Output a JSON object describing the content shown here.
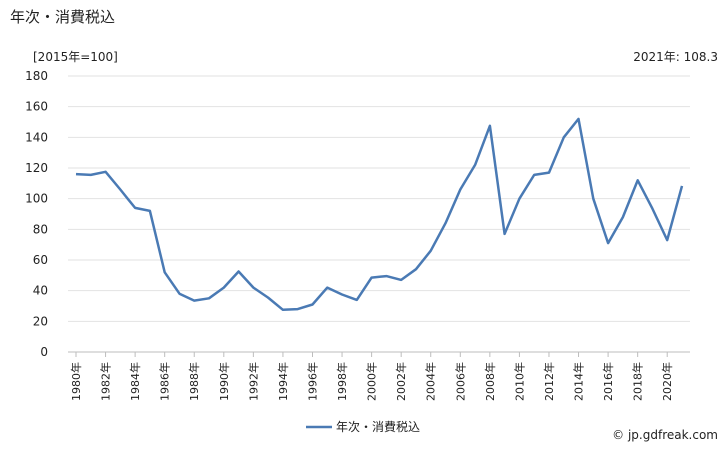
{
  "title": "年次・消費税込",
  "unit_label": "[2015年=100]",
  "latest_label": "2021年: 108.3",
  "credit": "© jp.gdfreak.com",
  "colors": {
    "series": "#4a7ab4",
    "grid": "#e2e2e2"
  },
  "chart_data": {
    "type": "line",
    "title": "年次・消費税込",
    "ylabel": "[2015年=100]",
    "xlabel": "",
    "ylim": [
      0,
      180
    ],
    "yticks": [
      0,
      20,
      40,
      60,
      80,
      100,
      120,
      140,
      160,
      180
    ],
    "grid": true,
    "legend_position": "bottom",
    "x": [
      1980,
      1981,
      1982,
      1983,
      1984,
      1985,
      1986,
      1987,
      1988,
      1989,
      1990,
      1991,
      1992,
      1993,
      1994,
      1995,
      1996,
      1997,
      1998,
      1999,
      2000,
      2001,
      2002,
      2003,
      2004,
      2005,
      2006,
      2007,
      2008,
      2009,
      2010,
      2011,
      2012,
      2013,
      2014,
      2015,
      2016,
      2017,
      2018,
      2019,
      2020,
      2021
    ],
    "xtick_labels": [
      "1980年",
      "1982年",
      "1984年",
      "1986年",
      "1988年",
      "1990年",
      "1992年",
      "1994年",
      "1996年",
      "1998年",
      "2000年",
      "2002年",
      "2004年",
      "2006年",
      "2008年",
      "2010年",
      "2012年",
      "2014年",
      "2016年",
      "2018年",
      "2020年"
    ],
    "series": [
      {
        "name": "年次・消費税込",
        "values": [
          116,
          115.5,
          117.5,
          106,
          94,
          92,
          52,
          38,
          33.5,
          35,
          42,
          52.5,
          42,
          35.5,
          27.5,
          28,
          31,
          42,
          37.5,
          34,
          48.5,
          49.5,
          47,
          54,
          66,
          84,
          106,
          122,
          147.5,
          77,
          100,
          115.5,
          117,
          140,
          152,
          100,
          71,
          88,
          112,
          93.5,
          73,
          108.3
        ]
      }
    ]
  }
}
